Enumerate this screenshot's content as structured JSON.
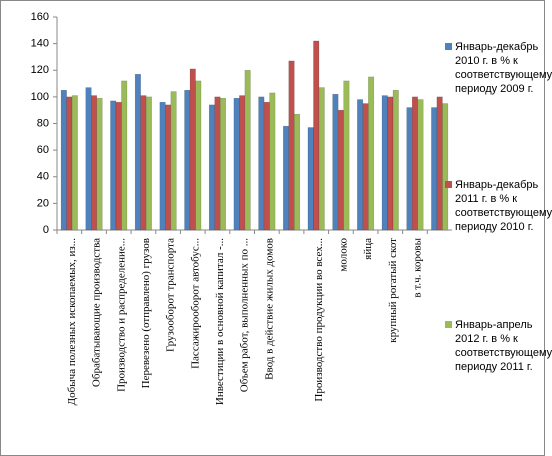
{
  "chart_data": {
    "type": "bar",
    "categories": [
      "Добыча полезных ископаемых, из...",
      "Обрабатывающие производства",
      "Производство и распределение...",
      "Перевезено (отправлено) грузов",
      "Грузооборот транспорта",
      "Пассажирооборот автобус...",
      "Инвестиции в основной капитал -...",
      "Объем работ, выполненных по ...",
      "Ввод в действие жилых домов",
      null,
      "Производство продукции во всех...",
      "молоко",
      "яйца",
      "крупный рогатый скот",
      "в т.ч. коровы",
      null
    ],
    "series": [
      {
        "name": "Январь-декабрь 2010 г. в % к соответствующему периоду 2009 г.",
        "color": "#4f81bd",
        "values": [
          105,
          107,
          97,
          117,
          96,
          105,
          94,
          99,
          100,
          78,
          77,
          102,
          98,
          101,
          92,
          92
        ]
      },
      {
        "name": "Январь-декабрь 2011 г. в % к соответствующему периоду 2010 г.",
        "color": "#c0504d",
        "values": [
          100,
          101,
          96,
          101,
          94,
          121,
          100,
          101,
          96,
          127,
          142,
          90,
          95,
          100,
          100,
          100
        ]
      },
      {
        "name": "Январь-апрель 2012 г. в % к соответствующему периоду 2011 г.",
        "color": "#9bbb59",
        "values": [
          101,
          99,
          112,
          100,
          104,
          112,
          99,
          120,
          103,
          87,
          107,
          112,
          115,
          105,
          98,
          95
        ]
      }
    ],
    "ylim": [
      0,
      160
    ],
    "yticks": [
      0,
      20,
      40,
      60,
      80,
      100,
      120,
      140,
      160
    ],
    "grid": false
  }
}
